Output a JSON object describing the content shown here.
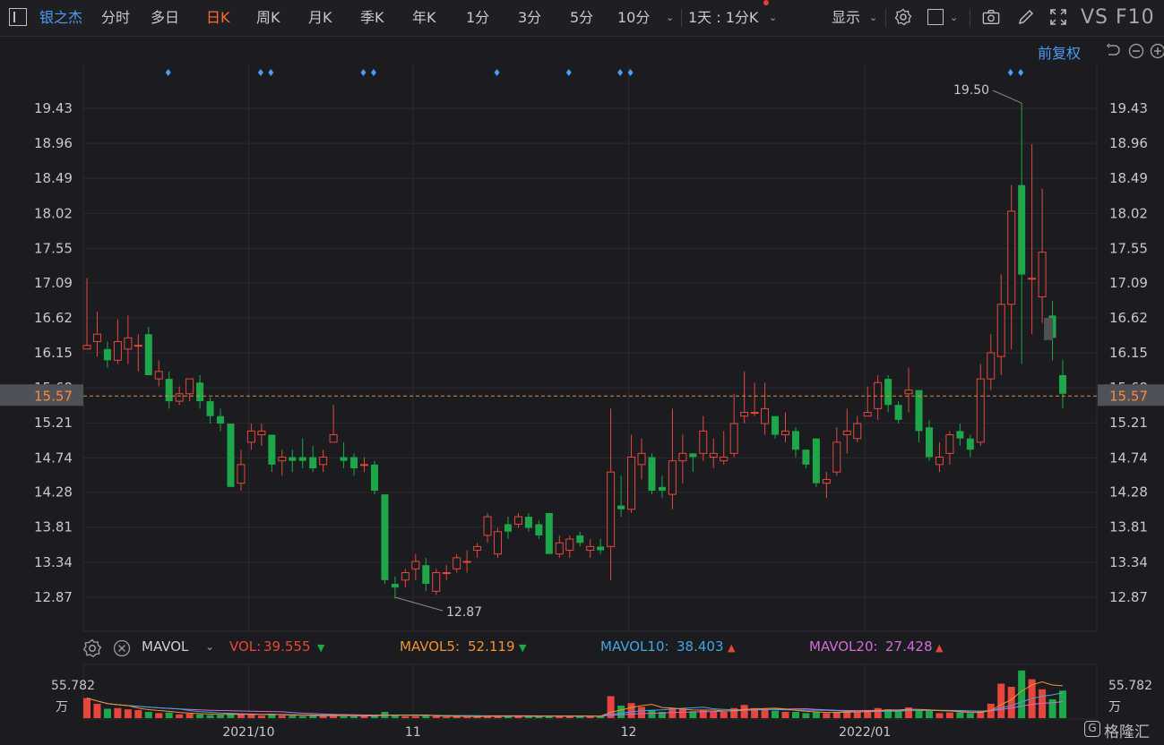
{
  "toolbar": {
    "stock_name": "银之杰",
    "periods": [
      "分时",
      "多日",
      "日K",
      "周K",
      "月K",
      "季K",
      "年K",
      "1分",
      "3分",
      "5分",
      "10分"
    ],
    "active_period": "日K",
    "compare": "1天 : 1分K",
    "display": "显示",
    "vs_label": "VS F10"
  },
  "adjust_label": "前复权",
  "price_axis": {
    "ticks": [
      "19.43",
      "18.96",
      "18.49",
      "18.02",
      "17.55",
      "17.09",
      "16.62",
      "16.15",
      "15.68",
      "15.21",
      "14.74",
      "14.28",
      "13.81",
      "13.34",
      "12.87"
    ],
    "current_price": "15.57",
    "high_label": "19.50",
    "low_label": "12.87"
  },
  "date_axis": [
    "2021/10",
    "11",
    "12",
    "2022/01"
  ],
  "volume": {
    "indicator": "MAVOL",
    "vol_label": "VOL:",
    "vol_value": "39.555",
    "mavol5_label": "MAVOL5:",
    "mavol5_value": "52.119",
    "mavol10_label": "MAVOL10:",
    "mavol10_value": "38.403",
    "mavol20_label": "MAVOL20:",
    "mavol20_value": "27.428",
    "axis_value": "55.782",
    "axis_unit": "万"
  },
  "watermark": "格隆汇",
  "colors": {
    "up": "#e8463c",
    "down": "#1ea64a",
    "accent": "#ff6b2b",
    "link": "#4d9bf2",
    "mavol5": "#f5912e",
    "mavol10": "#3fa7e8",
    "mavol20": "#d46ad8"
  },
  "chart_data": {
    "type": "candlestick",
    "ylim": [
      12.6,
      19.85
    ],
    "candles": [
      [
        16.2,
        16.25,
        17.15,
        16.2
      ],
      [
        16.3,
        16.4,
        16.7,
        16.1
      ],
      [
        16.2,
        16.05,
        16.3,
        15.95
      ],
      [
        16.05,
        16.3,
        16.6,
        16.0
      ],
      [
        16.2,
        16.35,
        16.65,
        16.0
      ],
      [
        16.25,
        16.25,
        16.4,
        15.9
      ],
      [
        16.4,
        15.85,
        16.5,
        15.85
      ],
      [
        15.8,
        15.9,
        16.05,
        15.7
      ],
      [
        15.8,
        15.5,
        15.9,
        15.4
      ],
      [
        15.5,
        15.6,
        15.7,
        15.45
      ],
      [
        15.6,
        15.8,
        15.8,
        15.5
      ],
      [
        15.75,
        15.5,
        15.85,
        15.4
      ],
      [
        15.5,
        15.3,
        15.55,
        15.2
      ],
      [
        15.3,
        15.2,
        15.4,
        15.1
      ],
      [
        15.2,
        14.35,
        15.2,
        14.35
      ],
      [
        14.4,
        14.65,
        14.85,
        14.3
      ],
      [
        14.95,
        15.1,
        15.2,
        14.85
      ],
      [
        15.05,
        15.1,
        15.2,
        14.9
      ],
      [
        15.05,
        14.65,
        15.05,
        14.55
      ],
      [
        14.7,
        14.75,
        14.85,
        14.5
      ],
      [
        14.75,
        14.7,
        14.85,
        14.55
      ],
      [
        14.75,
        14.7,
        15.0,
        14.6
      ],
      [
        14.75,
        14.6,
        14.9,
        14.55
      ],
      [
        14.65,
        14.75,
        14.85,
        14.55
      ],
      [
        14.95,
        15.05,
        15.45,
        14.95
      ],
      [
        14.75,
        14.7,
        14.95,
        14.6
      ],
      [
        14.75,
        14.6,
        14.8,
        14.5
      ],
      [
        14.65,
        14.65,
        14.75,
        14.55
      ],
      [
        14.65,
        14.3,
        14.7,
        14.25
      ],
      [
        14.25,
        13.1,
        14.25,
        13.05
      ],
      [
        13.05,
        13.0,
        13.15,
        12.85
      ],
      [
        13.1,
        13.2,
        13.25,
        13.0
      ],
      [
        13.25,
        13.35,
        13.45,
        13.1
      ],
      [
        13.3,
        13.05,
        13.4,
        12.95
      ],
      [
        12.95,
        13.2,
        13.25,
        12.9
      ],
      [
        13.2,
        13.2,
        13.3,
        13.1
      ],
      [
        13.25,
        13.4,
        13.45,
        13.2
      ],
      [
        13.35,
        13.35,
        13.5,
        13.2
      ],
      [
        13.5,
        13.55,
        13.6,
        13.4
      ],
      [
        13.7,
        13.95,
        14.0,
        13.6
      ],
      [
        13.45,
        13.75,
        13.8,
        13.4
      ],
      [
        13.85,
        13.75,
        13.95,
        13.65
      ],
      [
        13.85,
        13.95,
        14.0,
        13.8
      ],
      [
        13.95,
        13.8,
        14.0,
        13.75
      ],
      [
        13.85,
        13.7,
        13.9,
        13.65
      ],
      [
        14.0,
        13.45,
        14.0,
        13.45
      ],
      [
        13.45,
        13.6,
        13.7,
        13.4
      ],
      [
        13.5,
        13.65,
        13.7,
        13.4
      ],
      [
        13.7,
        13.6,
        13.75,
        13.55
      ],
      [
        13.5,
        13.55,
        13.65,
        13.4
      ],
      [
        13.55,
        13.5,
        13.65,
        13.45
      ],
      [
        13.55,
        14.55,
        15.4,
        13.1
      ],
      [
        14.1,
        14.05,
        14.5,
        13.95
      ],
      [
        14.05,
        14.75,
        15.05,
        14.0
      ],
      [
        14.65,
        14.8,
        15.0,
        14.45
      ],
      [
        14.75,
        14.3,
        14.8,
        14.25
      ],
      [
        14.35,
        14.3,
        14.5,
        14.2
      ],
      [
        14.25,
        14.7,
        15.4,
        14.05
      ],
      [
        14.7,
        14.8,
        15.05,
        14.4
      ],
      [
        14.8,
        14.75,
        14.8,
        14.55
      ],
      [
        14.8,
        15.1,
        15.3,
        14.7
      ],
      [
        14.75,
        14.8,
        15.0,
        14.6
      ],
      [
        14.7,
        14.75,
        15.1,
        14.65
      ],
      [
        14.8,
        15.2,
        15.6,
        14.75
      ],
      [
        15.3,
        15.35,
        15.9,
        15.2
      ],
      [
        15.35,
        15.35,
        15.75,
        15.3
      ],
      [
        15.2,
        15.4,
        15.75,
        15.05
      ],
      [
        15.3,
        15.05,
        15.3,
        15.0
      ],
      [
        15.05,
        15.1,
        15.35,
        14.95
      ],
      [
        15.1,
        14.85,
        15.15,
        14.75
      ],
      [
        14.85,
        14.65,
        14.85,
        14.6
      ],
      [
        15.0,
        14.4,
        15.0,
        14.35
      ],
      [
        14.4,
        14.45,
        14.55,
        14.2
      ],
      [
        14.55,
        14.95,
        15.15,
        14.5
      ],
      [
        15.05,
        15.1,
        15.4,
        14.8
      ],
      [
        15.0,
        15.2,
        15.3,
        14.95
      ],
      [
        15.3,
        15.35,
        15.7,
        15.3
      ],
      [
        15.4,
        15.75,
        15.85,
        15.25
      ],
      [
        15.8,
        15.45,
        15.85,
        15.35
      ],
      [
        15.45,
        15.25,
        15.5,
        15.2
      ],
      [
        15.6,
        15.65,
        15.95,
        15.35
      ],
      [
        15.65,
        15.1,
        15.65,
        14.95
      ],
      [
        15.15,
        14.75,
        15.25,
        14.7
      ],
      [
        14.65,
        14.75,
        14.95,
        14.55
      ],
      [
        14.8,
        15.05,
        15.1,
        14.65
      ],
      [
        15.1,
        15.0,
        15.2,
        14.9
      ],
      [
        15.0,
        14.85,
        15.05,
        14.75
      ],
      [
        14.95,
        15.8,
        16.0,
        14.9
      ],
      [
        15.8,
        16.15,
        16.4,
        15.65
      ],
      [
        16.1,
        16.8,
        17.2,
        15.85
      ],
      [
        16.8,
        18.05,
        18.4,
        16.2
      ],
      [
        18.4,
        17.2,
        19.5,
        16.0
      ],
      [
        17.15,
        17.15,
        18.95,
        16.4
      ],
      [
        16.9,
        17.5,
        18.35,
        16.55
      ],
      [
        16.65,
        16.35,
        16.85,
        16.05
      ],
      [
        15.85,
        15.6,
        16.05,
        15.4
      ]
    ]
  }
}
